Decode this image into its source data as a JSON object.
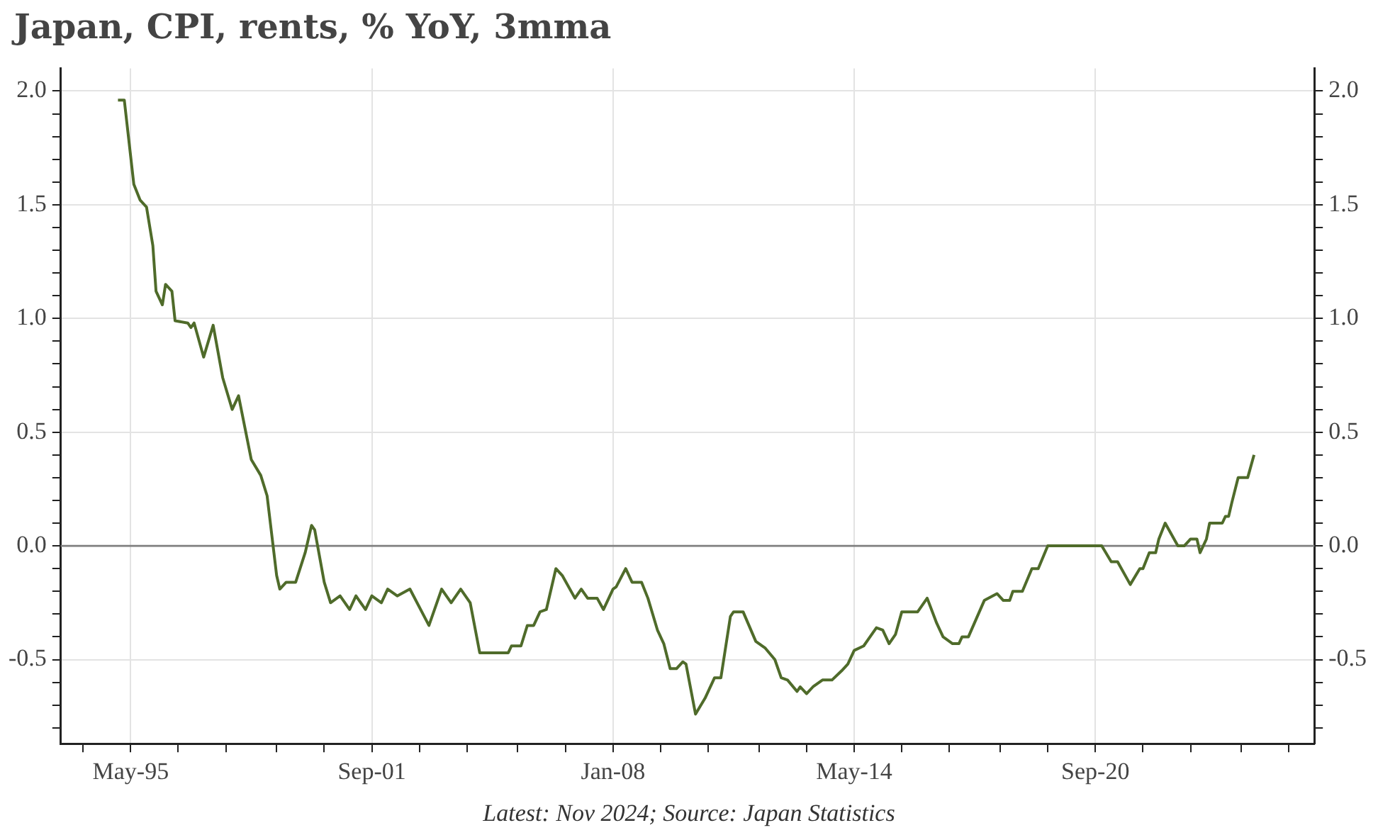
{
  "chart_data": {
    "type": "line",
    "title": "Japan, CPI, rents, % YoY, 3mma",
    "annotations": [
      "Latest: Nov 2024; Source: Japan Statistics"
    ],
    "x": [
      "1995-01",
      "1995-03",
      "1995-06",
      "1995-08",
      "1995-10",
      "1995-12",
      "1996-01",
      "1996-03",
      "1996-04",
      "1996-06",
      "1996-07",
      "1996-11",
      "1996-12",
      "1997-01",
      "1997-04",
      "1997-07",
      "1997-10",
      "1998-01",
      "1998-03",
      "1998-07",
      "1998-10",
      "1998-12",
      "1999-03",
      "1999-04",
      "1999-06",
      "1999-09",
      "1999-12",
      "2000-02",
      "2000-03",
      "2000-06",
      "2000-08",
      "2000-11",
      "2001-02",
      "2001-04",
      "2001-07",
      "2001-09",
      "2001-12",
      "2002-02",
      "2002-05",
      "2002-09",
      "2003-03",
      "2003-07",
      "2003-10",
      "2004-01",
      "2004-04",
      "2004-07",
      "2005-04",
      "2005-05",
      "2005-08",
      "2005-10",
      "2005-12",
      "2006-02",
      "2006-04",
      "2006-07",
      "2006-09",
      "2007-01",
      "2007-03",
      "2007-05",
      "2007-08",
      "2007-10",
      "2008-01",
      "2008-02",
      "2008-05",
      "2008-07",
      "2008-10",
      "2008-12",
      "2009-03",
      "2009-05",
      "2009-07",
      "2009-09",
      "2009-11",
      "2009-12",
      "2010-03",
      "2010-06",
      "2010-09",
      "2010-11",
      "2011-02",
      "2011-03",
      "2011-06",
      "2011-10",
      "2012-01",
      "2012-04",
      "2012-06",
      "2012-08",
      "2012-11",
      "2012-12",
      "2013-02",
      "2013-04",
      "2013-07",
      "2013-10",
      "2014-01",
      "2014-03",
      "2014-05",
      "2014-08",
      "2014-10",
      "2014-12",
      "2015-02",
      "2015-04",
      "2015-06",
      "2015-08",
      "2016-01",
      "2016-04",
      "2016-07",
      "2016-09",
      "2016-12",
      "2017-02",
      "2017-03",
      "2017-05",
      "2017-10",
      "2018-02",
      "2018-04",
      "2018-06",
      "2018-07",
      "2018-10",
      "2019-01",
      "2019-03",
      "2019-06",
      "2020-11",
      "2021-02",
      "2021-04",
      "2021-08",
      "2021-11",
      "2021-12",
      "2022-02",
      "2022-04",
      "2022-05",
      "2022-07",
      "2022-11",
      "2023-01",
      "2023-03",
      "2023-05",
      "2023-06",
      "2023-08",
      "2023-09",
      "2024-01",
      "2024-02",
      "2024-03",
      "2024-04",
      "2024-06",
      "2024-09",
      "2024-11"
    ],
    "series": [
      {
        "color": "#4f6b2a",
        "values": [
          1.96,
          1.96,
          1.59,
          1.52,
          1.49,
          1.32,
          1.12,
          1.06,
          1.15,
          1.12,
          0.99,
          0.98,
          0.96,
          0.98,
          0.83,
          0.97,
          0.74,
          0.6,
          0.66,
          0.38,
          0.31,
          0.22,
          -0.13,
          -0.19,
          -0.16,
          -0.16,
          -0.03,
          0.09,
          0.07,
          -0.16,
          -0.25,
          -0.22,
          -0.28,
          -0.22,
          -0.28,
          -0.22,
          -0.25,
          -0.19,
          -0.22,
          -0.19,
          -0.35,
          -0.19,
          -0.25,
          -0.19,
          -0.25,
          -0.47,
          -0.47,
          -0.44,
          -0.44,
          -0.35,
          -0.35,
          -0.29,
          -0.28,
          -0.1,
          -0.13,
          -0.23,
          -0.19,
          -0.23,
          -0.23,
          -0.28,
          -0.19,
          -0.18,
          -0.1,
          -0.16,
          -0.16,
          -0.23,
          -0.37,
          -0.43,
          -0.54,
          -0.54,
          -0.51,
          -0.52,
          -0.74,
          -0.67,
          -0.58,
          -0.58,
          -0.31,
          -0.29,
          -0.29,
          -0.42,
          -0.45,
          -0.5,
          -0.58,
          -0.59,
          -0.64,
          -0.62,
          -0.65,
          -0.62,
          -0.59,
          -0.59,
          -0.55,
          -0.52,
          -0.46,
          -0.44,
          -0.4,
          -0.36,
          -0.37,
          -0.43,
          -0.39,
          -0.29,
          -0.29,
          -0.23,
          -0.34,
          -0.4,
          -0.43,
          -0.43,
          -0.4,
          -0.4,
          -0.24,
          -0.21,
          -0.24,
          -0.24,
          -0.2,
          -0.2,
          -0.1,
          -0.1,
          0.0,
          0.0,
          -0.07,
          -0.07,
          -0.17,
          -0.1,
          -0.1,
          -0.03,
          -0.03,
          0.03,
          0.1,
          0.0,
          0.0,
          0.03,
          0.03,
          -0.03,
          0.03,
          0.1,
          0.1,
          0.13,
          0.13,
          0.19,
          0.3,
          0.3,
          0.4
        ]
      }
    ],
    "xlim": [
      "1993-07",
      "2026-06"
    ],
    "xticks": [
      {
        "value": "1994-02",
        "label": null
      },
      {
        "value": "1995-05",
        "label": "May-95"
      },
      {
        "value": "1996-08",
        "label": null
      },
      {
        "value": "1997-11",
        "label": null
      },
      {
        "value": "1999-03",
        "label": null
      },
      {
        "value": "2000-06",
        "label": null
      },
      {
        "value": "2001-09",
        "label": "Sep-01"
      },
      {
        "value": "2002-12",
        "label": null
      },
      {
        "value": "2004-03",
        "label": null
      },
      {
        "value": "2005-07",
        "label": null
      },
      {
        "value": "2006-10",
        "label": null
      },
      {
        "value": "2008-01",
        "label": "Jan-08"
      },
      {
        "value": "2009-04",
        "label": null
      },
      {
        "value": "2010-07",
        "label": null
      },
      {
        "value": "2011-11",
        "label": null
      },
      {
        "value": "2013-02",
        "label": null
      },
      {
        "value": "2014-05",
        "label": "May-14"
      },
      {
        "value": "2015-08",
        "label": null
      },
      {
        "value": "2016-11",
        "label": null
      },
      {
        "value": "2018-03",
        "label": null
      },
      {
        "value": "2019-06",
        "label": null
      },
      {
        "value": "2020-09",
        "label": "Sep-20"
      },
      {
        "value": "2021-12",
        "label": null
      },
      {
        "value": "2023-03",
        "label": null
      },
      {
        "value": "2024-07",
        "label": null
      },
      {
        "value": "2025-10",
        "label": null
      }
    ],
    "ylim": [
      -0.87,
      2.1
    ],
    "yticks": [
      {
        "value": -0.8,
        "label": null
      },
      {
        "value": -0.7,
        "label": null
      },
      {
        "value": -0.6,
        "label": null
      },
      {
        "value": -0.5,
        "label": "-0.5"
      },
      {
        "value": -0.4,
        "label": null
      },
      {
        "value": -0.3,
        "label": null
      },
      {
        "value": -0.2,
        "label": null
      },
      {
        "value": -0.1,
        "label": null
      },
      {
        "value": 0,
        "label": "0.0"
      },
      {
        "value": 0.1,
        "label": null
      },
      {
        "value": 0.2,
        "label": null
      },
      {
        "value": 0.3,
        "label": null
      },
      {
        "value": 0.4,
        "label": null
      },
      {
        "value": 0.5,
        "label": "0.5"
      },
      {
        "value": 0.6,
        "label": null
      },
      {
        "value": 0.7,
        "label": null
      },
      {
        "value": 0.8,
        "label": null
      },
      {
        "value": 0.9,
        "label": null
      },
      {
        "value": 1,
        "label": "1.0"
      },
      {
        "value": 1.1,
        "label": null
      },
      {
        "value": 1.2,
        "label": null
      },
      {
        "value": 1.3,
        "label": null
      },
      {
        "value": 1.4,
        "label": null
      },
      {
        "value": 1.5,
        "label": "1.5"
      },
      {
        "value": 1.6,
        "label": null
      },
      {
        "value": 1.7,
        "label": null
      },
      {
        "value": 1.8,
        "label": null
      },
      {
        "value": 1.9,
        "label": null
      },
      {
        "value": 2,
        "label": "2.0"
      }
    ],
    "y2lim": [
      -0.87,
      2.1
    ],
    "y2ticks": [
      {
        "value": -0.8,
        "label": null
      },
      {
        "value": -0.7,
        "label": null
      },
      {
        "value": -0.6,
        "label": null
      },
      {
        "value": -0.5,
        "label": "-0.5"
      },
      {
        "value": -0.4,
        "label": null
      },
      {
        "value": -0.3,
        "label": null
      },
      {
        "value": -0.2,
        "label": null
      },
      {
        "value": -0.1,
        "label": null
      },
      {
        "value": 0,
        "label": "0.0"
      },
      {
        "value": 0.1,
        "label": null
      },
      {
        "value": 0.2,
        "label": null
      },
      {
        "value": 0.3,
        "label": null
      },
      {
        "value": 0.4,
        "label": null
      },
      {
        "value": 0.5,
        "label": "0.5"
      },
      {
        "value": 0.6,
        "label": null
      },
      {
        "value": 0.7,
        "label": null
      },
      {
        "value": 0.8,
        "label": null
      },
      {
        "value": 0.9,
        "label": null
      },
      {
        "value": 1,
        "label": "1.0"
      },
      {
        "value": 1.1,
        "label": null
      },
      {
        "value": 1.2,
        "label": null
      },
      {
        "value": 1.3,
        "label": null
      },
      {
        "value": 1.4,
        "label": null
      },
      {
        "value": 1.5,
        "label": "1.5"
      },
      {
        "value": 1.6,
        "label": null
      },
      {
        "value": 1.7,
        "label": null
      },
      {
        "value": 1.8,
        "label": null
      },
      {
        "value": 1.9,
        "label": null
      },
      {
        "value": 2,
        "label": "2.0"
      }
    ],
    "ref_lines": [
      {
        "axis": "y",
        "value": 0,
        "color": "#808080"
      }
    ],
    "grid": true,
    "legend": false,
    "marker": "none"
  }
}
